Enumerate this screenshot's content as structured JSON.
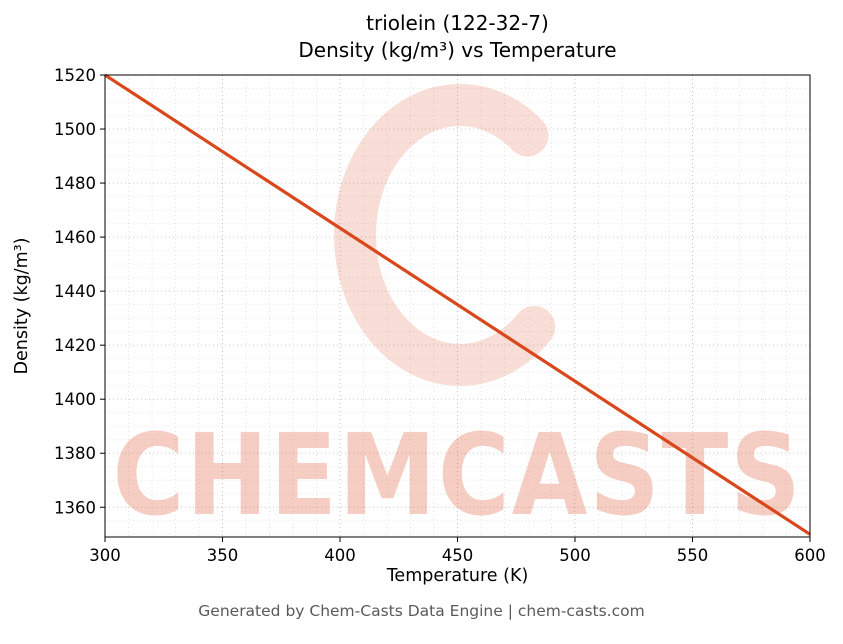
{
  "page": {
    "footer": "Generated by Chem-Casts Data Engine | chem-casts.com"
  },
  "watermark": {
    "text": "CHEMCASTS",
    "color": "#d9481c",
    "text_opacity": 0.27,
    "logo_opacity": 0.18
  },
  "chart_data": {
    "type": "line",
    "title": "triolein (122-32-7)",
    "subtitle": "Density (kg/m³) vs Temperature",
    "xlabel": "Temperature (K)",
    "ylabel": "Density (kg/m³)",
    "xlim": [
      300,
      600
    ],
    "ylim": [
      1349,
      1520
    ],
    "xticks": [
      300,
      350,
      400,
      450,
      500,
      550,
      600
    ],
    "yticks": [
      1360,
      1380,
      1400,
      1420,
      1440,
      1460,
      1480,
      1500,
      1520
    ],
    "x_minor_step": 10,
    "y_minor_step": 5,
    "grid": true,
    "legend": false,
    "series": [
      {
        "name": "density",
        "color": "#d9481c",
        "line_width": 3.2,
        "x": [
          300,
          600
        ],
        "y": [
          1520,
          1350
        ]
      }
    ]
  }
}
